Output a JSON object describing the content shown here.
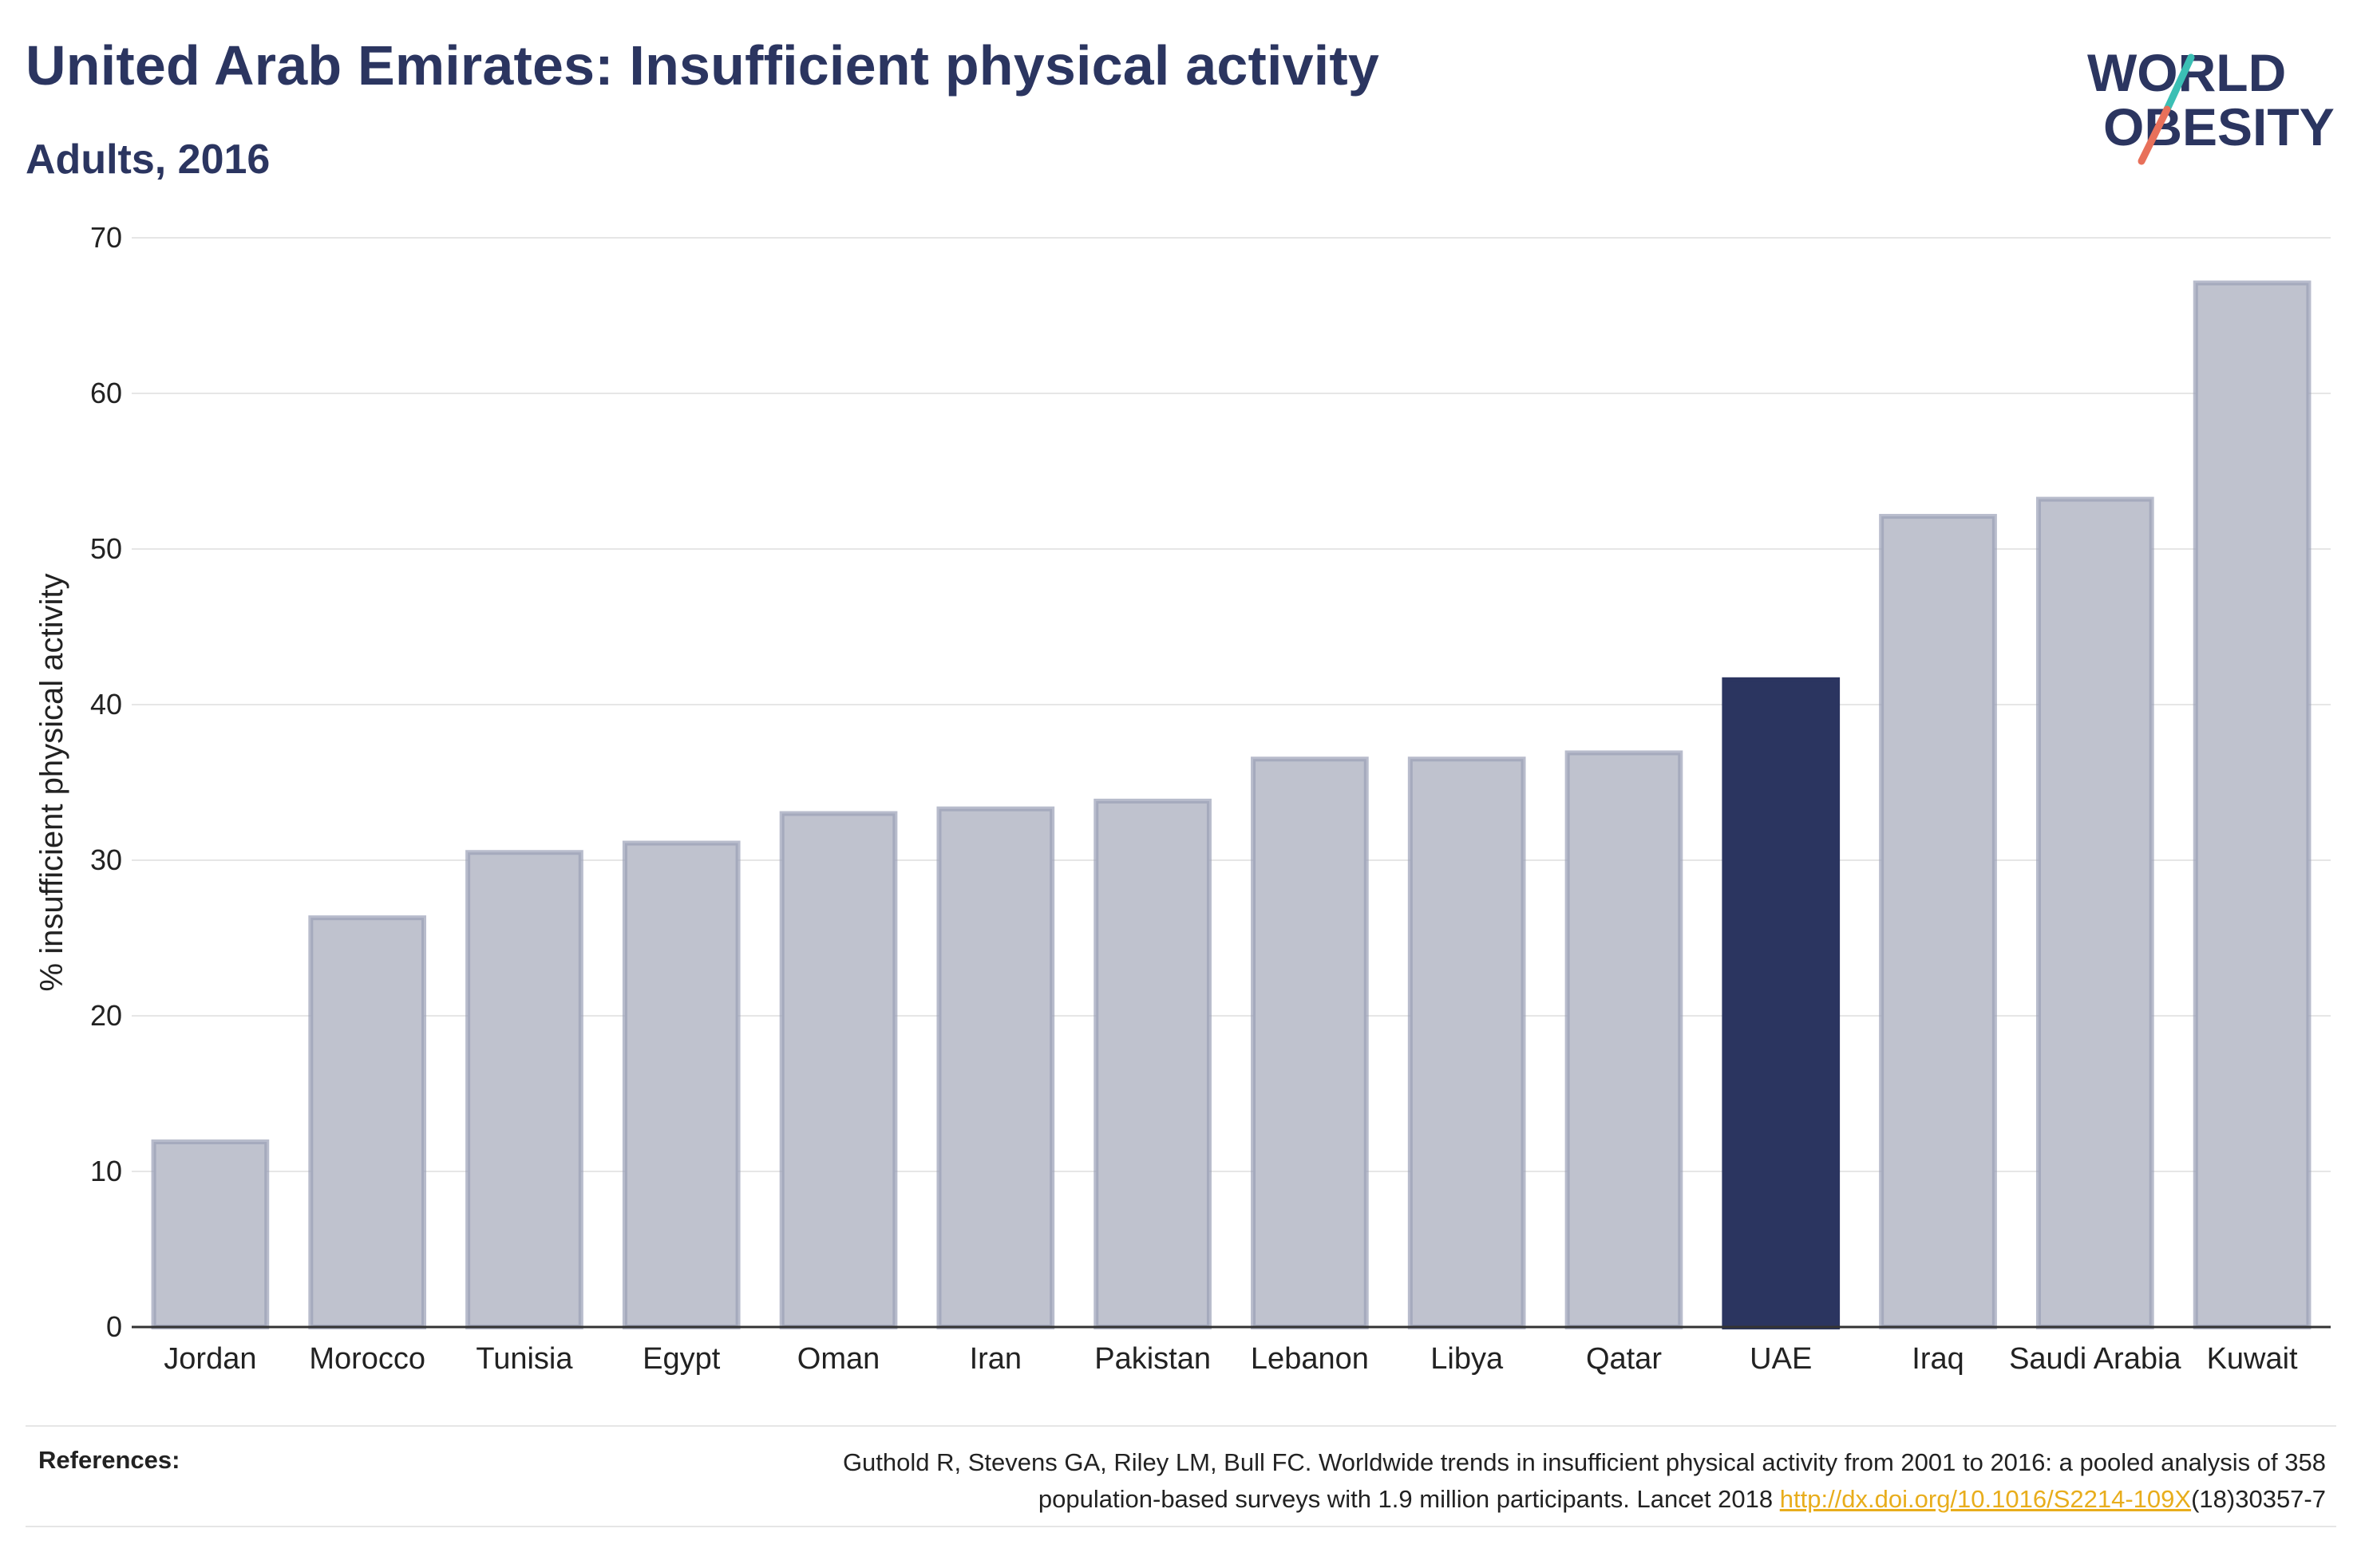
{
  "header": {
    "title": "United Arab Emirates: Insufficient physical activity",
    "subtitle": "Adults, 2016"
  },
  "logo": {
    "line1": "WORLD",
    "line2": "OBESITY",
    "text_color": "#2b3560",
    "slash_top_color": "#3bbfb4",
    "slash_bottom_color": "#e8705a"
  },
  "chart_data": {
    "type": "bar",
    "ylabel": "% insufficient physical activity",
    "xlabel": "",
    "ylim": [
      0,
      70
    ],
    "yticks": [
      0,
      10,
      20,
      30,
      40,
      50,
      60,
      70
    ],
    "grid": true,
    "categories": [
      "Jordan",
      "Morocco",
      "Tunisia",
      "Egypt",
      "Oman",
      "Iran",
      "Pakistan",
      "Lebanon",
      "Libya",
      "Qatar",
      "UAE",
      "Iraq",
      "Saudi Arabia",
      "Kuwait"
    ],
    "values": [
      11.9,
      26.3,
      30.5,
      31.1,
      33.0,
      33.3,
      33.8,
      36.5,
      36.5,
      36.9,
      41.6,
      52.1,
      53.2,
      67.1
    ],
    "highlight": "UAE",
    "colors": {
      "bar_fill": "#bfc2ce",
      "bar_stroke": "#9aa0b6",
      "highlight": "#2b3560",
      "grid": "#e6e6e6",
      "axis": "#333333"
    }
  },
  "references": {
    "label": "References:",
    "text_part1": "Guthold R, Stevens GA, Riley LM, Bull FC. Worldwide trends in insufficient physical activity from 2001 to 2016: a pooled analysis of 358",
    "text_part2": "population-based surveys with 1.9 million participants. Lancet 2018 ",
    "link": "http://dx.doi.org/10.1016/S2214-109X",
    "text_part3": "(18)30357-7"
  }
}
